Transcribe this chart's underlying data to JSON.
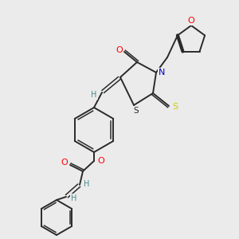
{
  "background_color": "#ebebeb",
  "bond_color": "#2a2a2a",
  "atom_colors": {
    "O": "#ff0000",
    "N": "#0000cd",
    "S_thioxo": "#cccc00",
    "S_ring": "#2a2a2a",
    "H": "#4a8a8a",
    "C": "#2a2a2a"
  },
  "figsize": [
    3.0,
    3.0
  ],
  "dpi": 100
}
